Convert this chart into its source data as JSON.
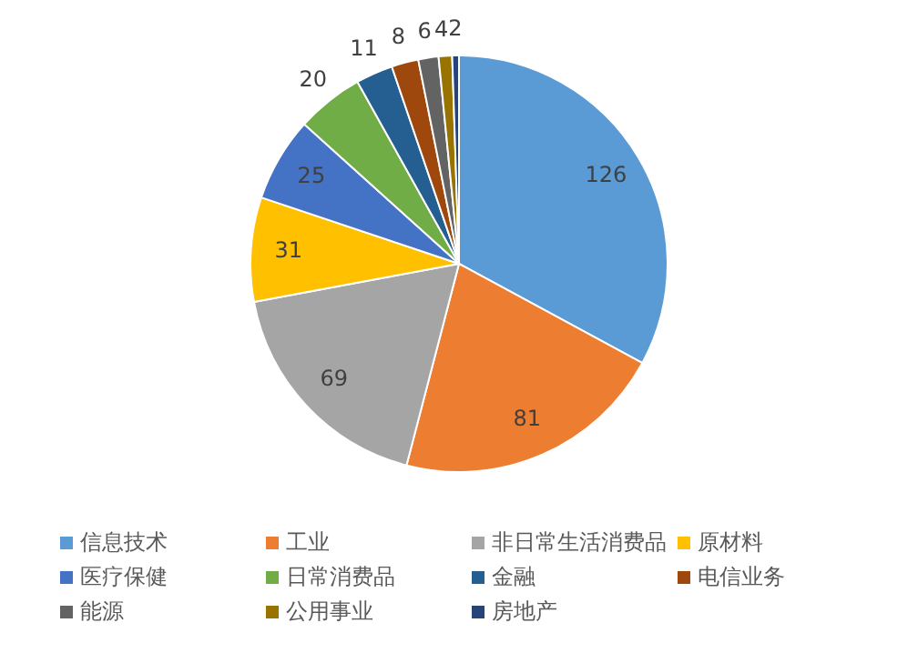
{
  "chart_data": {
    "type": "pie",
    "categories": [
      "信息技术",
      "工业",
      "非日常生活消费品",
      "原材料",
      "医疗保健",
      "日常消费品",
      "金融",
      "电信业务",
      "能源",
      "公用事业",
      "房地产"
    ],
    "values": [
      126,
      81,
      69,
      31,
      25,
      20,
      11,
      8,
      6,
      4,
      2
    ],
    "colors": [
      "#5b9bd5",
      "#ed7d31",
      "#a5a5a5",
      "#ffc000",
      "#4472c4",
      "#70ad47",
      "#255e91",
      "#9e480e",
      "#636363",
      "#997300",
      "#264478"
    ],
    "data_labels": true,
    "legend": "bottom"
  }
}
